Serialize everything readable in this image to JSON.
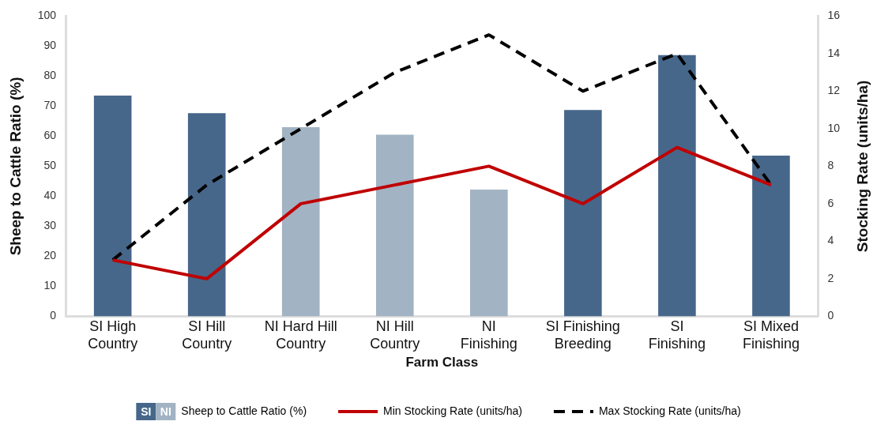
{
  "chart_data": {
    "type": "bar",
    "xlabel": "Farm Class",
    "ylabel": "Sheep to Cattle Ratio (%)",
    "y2label": "Stocking Rate (units/ha)",
    "categories": [
      "SI High Country",
      "SI Hill Country",
      "NI Hard Hill Country",
      "NI Hill Country",
      "NI Finishing",
      "SI Finishing Breeding",
      "SI Finishing",
      "SI Mixed Finishing"
    ],
    "series": [
      {
        "name": "Sheep to Cattle Ratio (%)",
        "colors": [
          "#46678a",
          "#46678a",
          "#a2b3c3",
          "#a2b3c3",
          "#a2b3c3",
          "#46678a",
          "#46678a",
          "#46678a"
        ],
        "values": [
          73.5,
          67.7,
          63,
          60.5,
          42.2,
          68.7,
          87,
          53.5
        ]
      },
      {
        "name": "Min Stocking Rate (units/ha)",
        "type": "line",
        "axis": "y2",
        "color": "#c00000",
        "line_style": "solid",
        "values": [
          3,
          2,
          6,
          7,
          8,
          6,
          9,
          7
        ]
      },
      {
        "name": "Max Stocking Rate (units/ha)",
        "type": "line",
        "axis": "y2",
        "color": "#000000",
        "line_style": "dashed",
        "values": [
          3,
          7,
          10,
          13,
          15,
          12,
          14,
          7
        ]
      }
    ],
    "ylim": [
      0,
      100
    ],
    "yticks": [
      0,
      10,
      20,
      30,
      40,
      50,
      60,
      70,
      80,
      90,
      100
    ],
    "y2lim": [
      0,
      16
    ],
    "y2ticks": [
      0,
      2,
      4,
      6,
      8,
      10,
      12,
      14,
      16
    ],
    "annotations": [
      "SI",
      "NI"
    ],
    "grid": false,
    "legend": "bottom",
    "marker": "none"
  }
}
